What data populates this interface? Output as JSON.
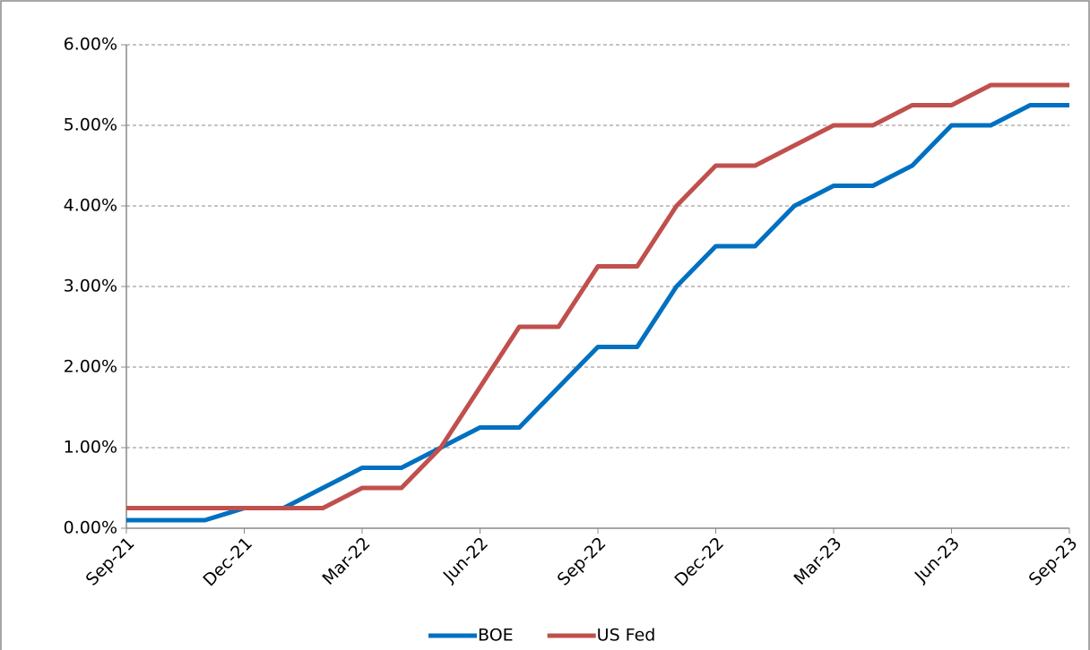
{
  "chart_data": {
    "type": "line",
    "categories": [
      "Sep-21",
      null,
      null,
      "Dec-21",
      null,
      null,
      "Mar-22",
      null,
      null,
      "Jun-22",
      null,
      null,
      "Sep-22",
      null,
      null,
      "Dec-22",
      null,
      null,
      "Mar-23",
      null,
      null,
      "Jun-23",
      null,
      null,
      "Sep-23"
    ],
    "series": [
      {
        "name": "BOE",
        "color": "#0070c0",
        "values": [
          0.1,
          0.1,
          0.1,
          0.25,
          0.25,
          0.5,
          0.75,
          0.75,
          1.0,
          1.25,
          1.25,
          1.75,
          2.25,
          2.25,
          3.0,
          3.5,
          3.5,
          4.0,
          4.25,
          4.25,
          4.5,
          5.0,
          5.0,
          5.25,
          5.25
        ]
      },
      {
        "name": "US Fed",
        "color": "#c0504d",
        "values": [
          0.25,
          0.25,
          0.25,
          0.25,
          0.25,
          0.25,
          0.5,
          0.5,
          1.0,
          1.75,
          2.5,
          2.5,
          3.25,
          3.25,
          4.0,
          4.5,
          4.5,
          4.75,
          5.0,
          5.0,
          5.25,
          5.25,
          5.5,
          5.5,
          5.5
        ]
      }
    ],
    "ylim": [
      0,
      6
    ],
    "yticks": [
      {
        "value": 0,
        "label": "0.00%"
      },
      {
        "value": 1,
        "label": "1.00%"
      },
      {
        "value": 2,
        "label": "2.00%"
      },
      {
        "value": 3,
        "label": "3.00%"
      },
      {
        "value": 4,
        "label": "4.00%"
      },
      {
        "value": 5,
        "label": "5.00%"
      },
      {
        "value": 6,
        "label": "6.00%"
      }
    ],
    "grid": true,
    "legend": "bottom"
  }
}
